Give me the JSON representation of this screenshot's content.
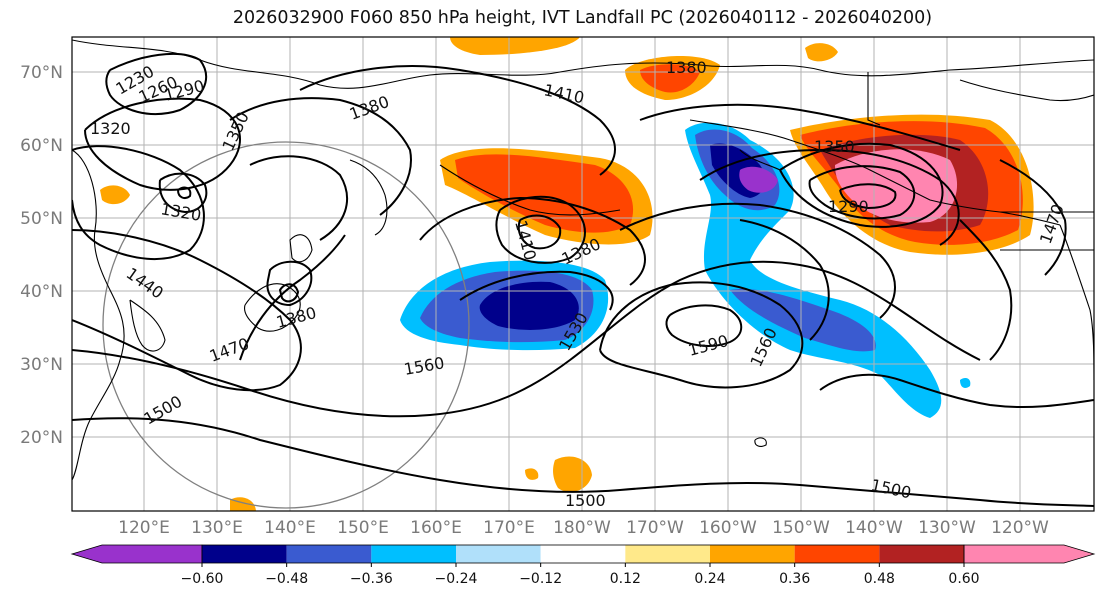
{
  "title": "2026032900 F060 850 hPa height, IVT Landfall PC (2026040112 - 2026040200)",
  "lat_labels": [
    "70°N",
    "60°N",
    "50°N",
    "40°N",
    "30°N",
    "20°N"
  ],
  "lon_labels": [
    "120°E",
    "130°E",
    "140°E",
    "150°E",
    "160°E",
    "170°E",
    "180°W",
    "170°W",
    "160°W",
    "150°W",
    "140°W",
    "130°W",
    "120°W"
  ],
  "colorbar": {
    "ticks": [
      "−0.60",
      "−0.48",
      "−0.36",
      "−0.24",
      "−0.12",
      "0.12",
      "0.24",
      "0.36",
      "0.48",
      "0.60"
    ],
    "colors": [
      "#9932cc",
      "#00008b",
      "#3a5bd0",
      "#00bfff",
      "#b0e0fa",
      "#ffffff",
      "#ffe98a",
      "#ffa500",
      "#ff4500",
      "#b22222",
      "#ff85b0"
    ]
  },
  "contour_labels": [
    "1230",
    "1260",
    "1290",
    "1320",
    "1350",
    "1380",
    "1410",
    "1320",
    "1440",
    "1380",
    "1470",
    "1500",
    "1410",
    "1380",
    "1530",
    "1560",
    "1590",
    "1560",
    "1500",
    "1500",
    "1380",
    "1350",
    "1290",
    "1470"
  ]
}
